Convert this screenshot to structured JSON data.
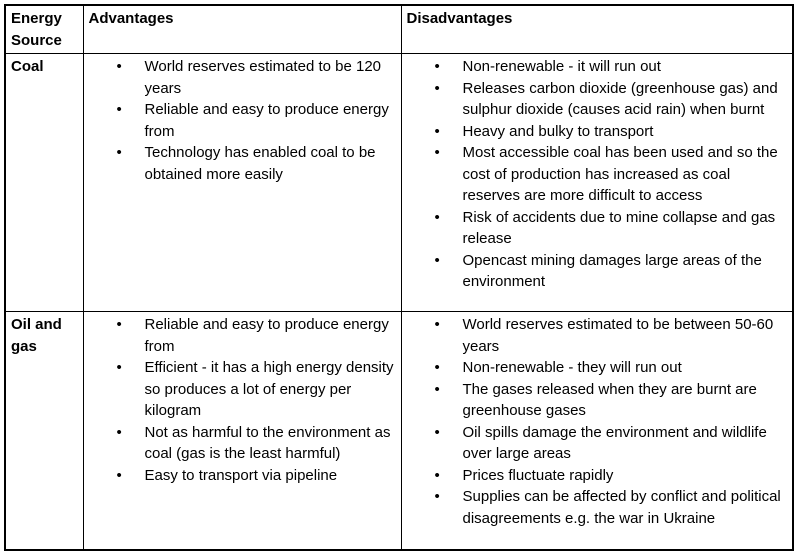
{
  "table": {
    "headers": [
      "Energy Source",
      "Advantages",
      "Disadvantages"
    ],
    "rows": [
      {
        "source": "Coal",
        "advantages": [
          "World reserves estimated to be 120 years",
          "Reliable and easy to produce energy from",
          "Technology has enabled coal to be obtained more easily"
        ],
        "disadvantages": [
          "Non-renewable - it will run out",
          "Releases carbon dioxide (greenhouse gas) and sulphur dioxide (causes acid rain) when burnt",
          "Heavy and bulky to transport",
          "Most accessible coal has been used and so the cost of production has increased as coal reserves are more difficult to access",
          "Risk of accidents due to mine collapse and gas release",
          "Opencast mining damages large areas of the environment"
        ]
      },
      {
        "source": "Oil and gas",
        "advantages": [
          "Reliable and easy to produce energy from",
          "Efficient - it has a high energy density so produces a lot of energy per kilogram",
          "Not as harmful to the environment as coal (gas is the least harmful)",
          "Easy to transport via pipeline"
        ],
        "disadvantages": [
          "World reserves estimated to be between 50-60 years",
          "Non-renewable - they will run out",
          "The gases released when they are burnt are greenhouse gases",
          "Oil spills damage the environment and wildlife over large areas",
          "Prices fluctuate rapidly",
          "Supplies can be affected by conflict and political disagreements e.g. the war in Ukraine"
        ]
      }
    ]
  },
  "colors": {
    "border": "#000000",
    "text": "#000000",
    "background": "#ffffff"
  }
}
